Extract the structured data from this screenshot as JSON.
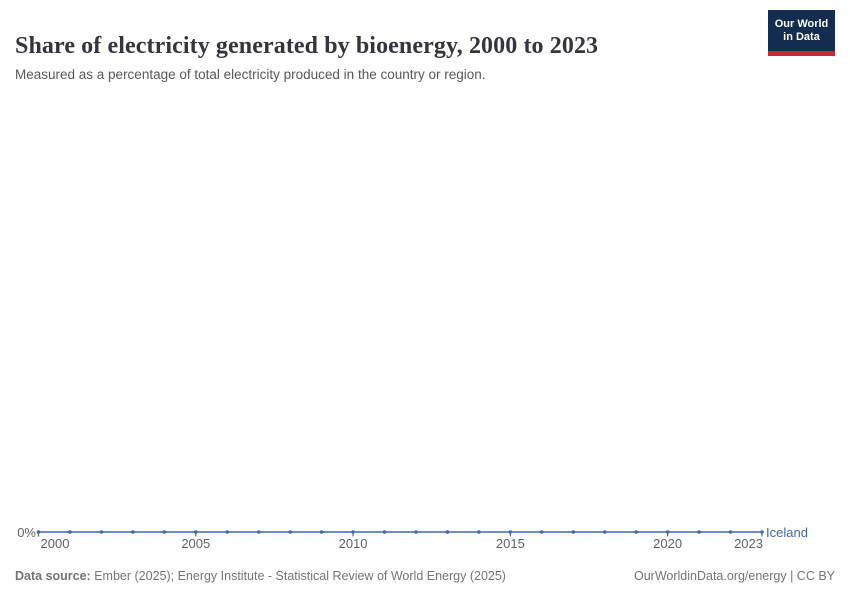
{
  "header": {
    "title": "Share of electricity generated by bioenergy, 2000 to 2023",
    "subtitle": "Measured as a percentage of total electricity produced in the country or region.",
    "logo": {
      "line1": "Our World",
      "line2": "in Data"
    }
  },
  "chart_data": {
    "type": "line",
    "title": "Share of electricity generated by bioenergy, 2000 to 2023",
    "xlabel": "",
    "ylabel": "",
    "x": [
      2000,
      2001,
      2002,
      2003,
      2004,
      2005,
      2006,
      2007,
      2008,
      2009,
      2010,
      2011,
      2012,
      2013,
      2014,
      2015,
      2016,
      2017,
      2018,
      2019,
      2020,
      2021,
      2022,
      2023
    ],
    "series": [
      {
        "name": "Iceland",
        "color": "#4268b0",
        "values": [
          0,
          0,
          0,
          0,
          0,
          0,
          0,
          0,
          0,
          0,
          0,
          0,
          0,
          0,
          0,
          0,
          0,
          0,
          0,
          0,
          0,
          0,
          0,
          0
        ]
      }
    ],
    "x_ticks": [
      2000,
      2005,
      2010,
      2015,
      2020,
      2023
    ],
    "y_ticks": [
      "0%"
    ],
    "ylim": [
      0,
      0
    ],
    "grid": false,
    "legend_position": "end-of-line"
  },
  "footer": {
    "source_label": "Data source:",
    "source_text": " Ember (2025); Energy Institute - Statistical Review of World Energy (2025)",
    "credit": "OurWorldinData.org/energy | CC BY"
  },
  "colors": {
    "line": "#4268b0",
    "axis_text": "#636363",
    "title_text": "#35353f",
    "subtitle_text": "#595959",
    "footer_text": "#757575",
    "logo_navy": "#132c4f",
    "logo_red": "#c32a35"
  }
}
